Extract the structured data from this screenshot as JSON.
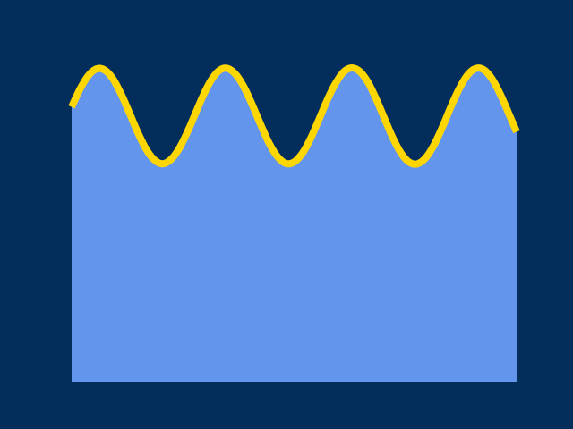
{
  "chart_data": {
    "type": "area",
    "title": "",
    "xlabel": "",
    "ylabel": "",
    "grid": false,
    "colors": {
      "background": "#032d5a",
      "area_fill": "#6495ed",
      "line_stroke": "#ffd700"
    },
    "xlim": [
      0,
      10.8
    ],
    "ylim": [
      0,
      1.0
    ],
    "x": [
      0.0,
      0.2,
      0.4,
      0.6,
      0.8,
      1.0,
      1.2,
      1.4,
      1.6,
      1.8,
      2.0,
      2.2,
      2.4,
      2.6,
      2.8,
      3.0,
      3.2,
      3.4,
      3.6,
      3.8,
      4.0,
      4.2,
      4.4,
      4.6,
      4.8,
      5.0,
      5.2,
      5.4,
      5.6,
      5.8,
      6.0,
      6.2,
      6.4,
      6.6,
      6.8,
      7.0,
      7.2,
      7.4,
      7.6,
      7.8,
      8.0,
      8.2,
      8.4,
      8.6,
      8.8,
      9.0,
      9.2,
      9.4,
      9.6,
      9.8,
      10.0,
      10.2,
      10.4,
      10.6,
      10.8
    ],
    "series": [
      {
        "values": [
          0.794,
          0.845,
          0.884,
          0.904,
          0.901,
          0.876,
          0.832,
          0.778,
          0.722,
          0.674,
          0.642,
          0.63,
          0.641,
          0.672,
          0.719,
          0.774,
          0.829,
          0.874,
          0.901,
          0.905,
          0.886,
          0.848,
          0.796,
          0.74,
          0.688,
          0.65,
          0.631,
          0.635,
          0.66,
          0.703,
          0.757,
          0.813,
          0.861,
          0.895,
          0.907,
          0.896,
          0.864,
          0.815,
          0.759,
          0.704,
          0.66,
          0.634,
          0.63,
          0.648,
          0.685,
          0.736,
          0.793,
          0.845,
          0.885,
          0.905,
          0.902,
          0.876,
          0.832,
          0.778,
          0.722
        ]
      }
    ]
  }
}
